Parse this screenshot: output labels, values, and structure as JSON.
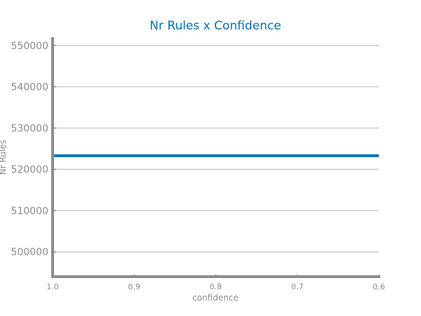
{
  "chart_data": {
    "type": "line",
    "title": "Nr Rules x Confidence",
    "xlabel": "confidence",
    "ylabel": "Nr Rules",
    "x_reversed": true,
    "xlim": [
      1.0,
      0.6
    ],
    "ylim": [
      494000,
      552000
    ],
    "x_ticks": [
      "1.0",
      "0.9",
      "0.8",
      "0.7",
      "0.6"
    ],
    "y_ticks": [
      "500000",
      "510000",
      "520000",
      "530000",
      "540000",
      "550000"
    ],
    "grid": true,
    "series": [
      {
        "x": [
          1.0,
          0.9,
          0.8,
          0.7,
          0.6
        ],
        "y": [
          523300,
          523300,
          523300,
          523300,
          523300
        ]
      }
    ],
    "colors": {
      "line": "#0571b0",
      "title": "#0571b0",
      "axis": "#8c8c8c",
      "grid": "#cccccc",
      "tick_text": "#8c8c8c"
    }
  }
}
